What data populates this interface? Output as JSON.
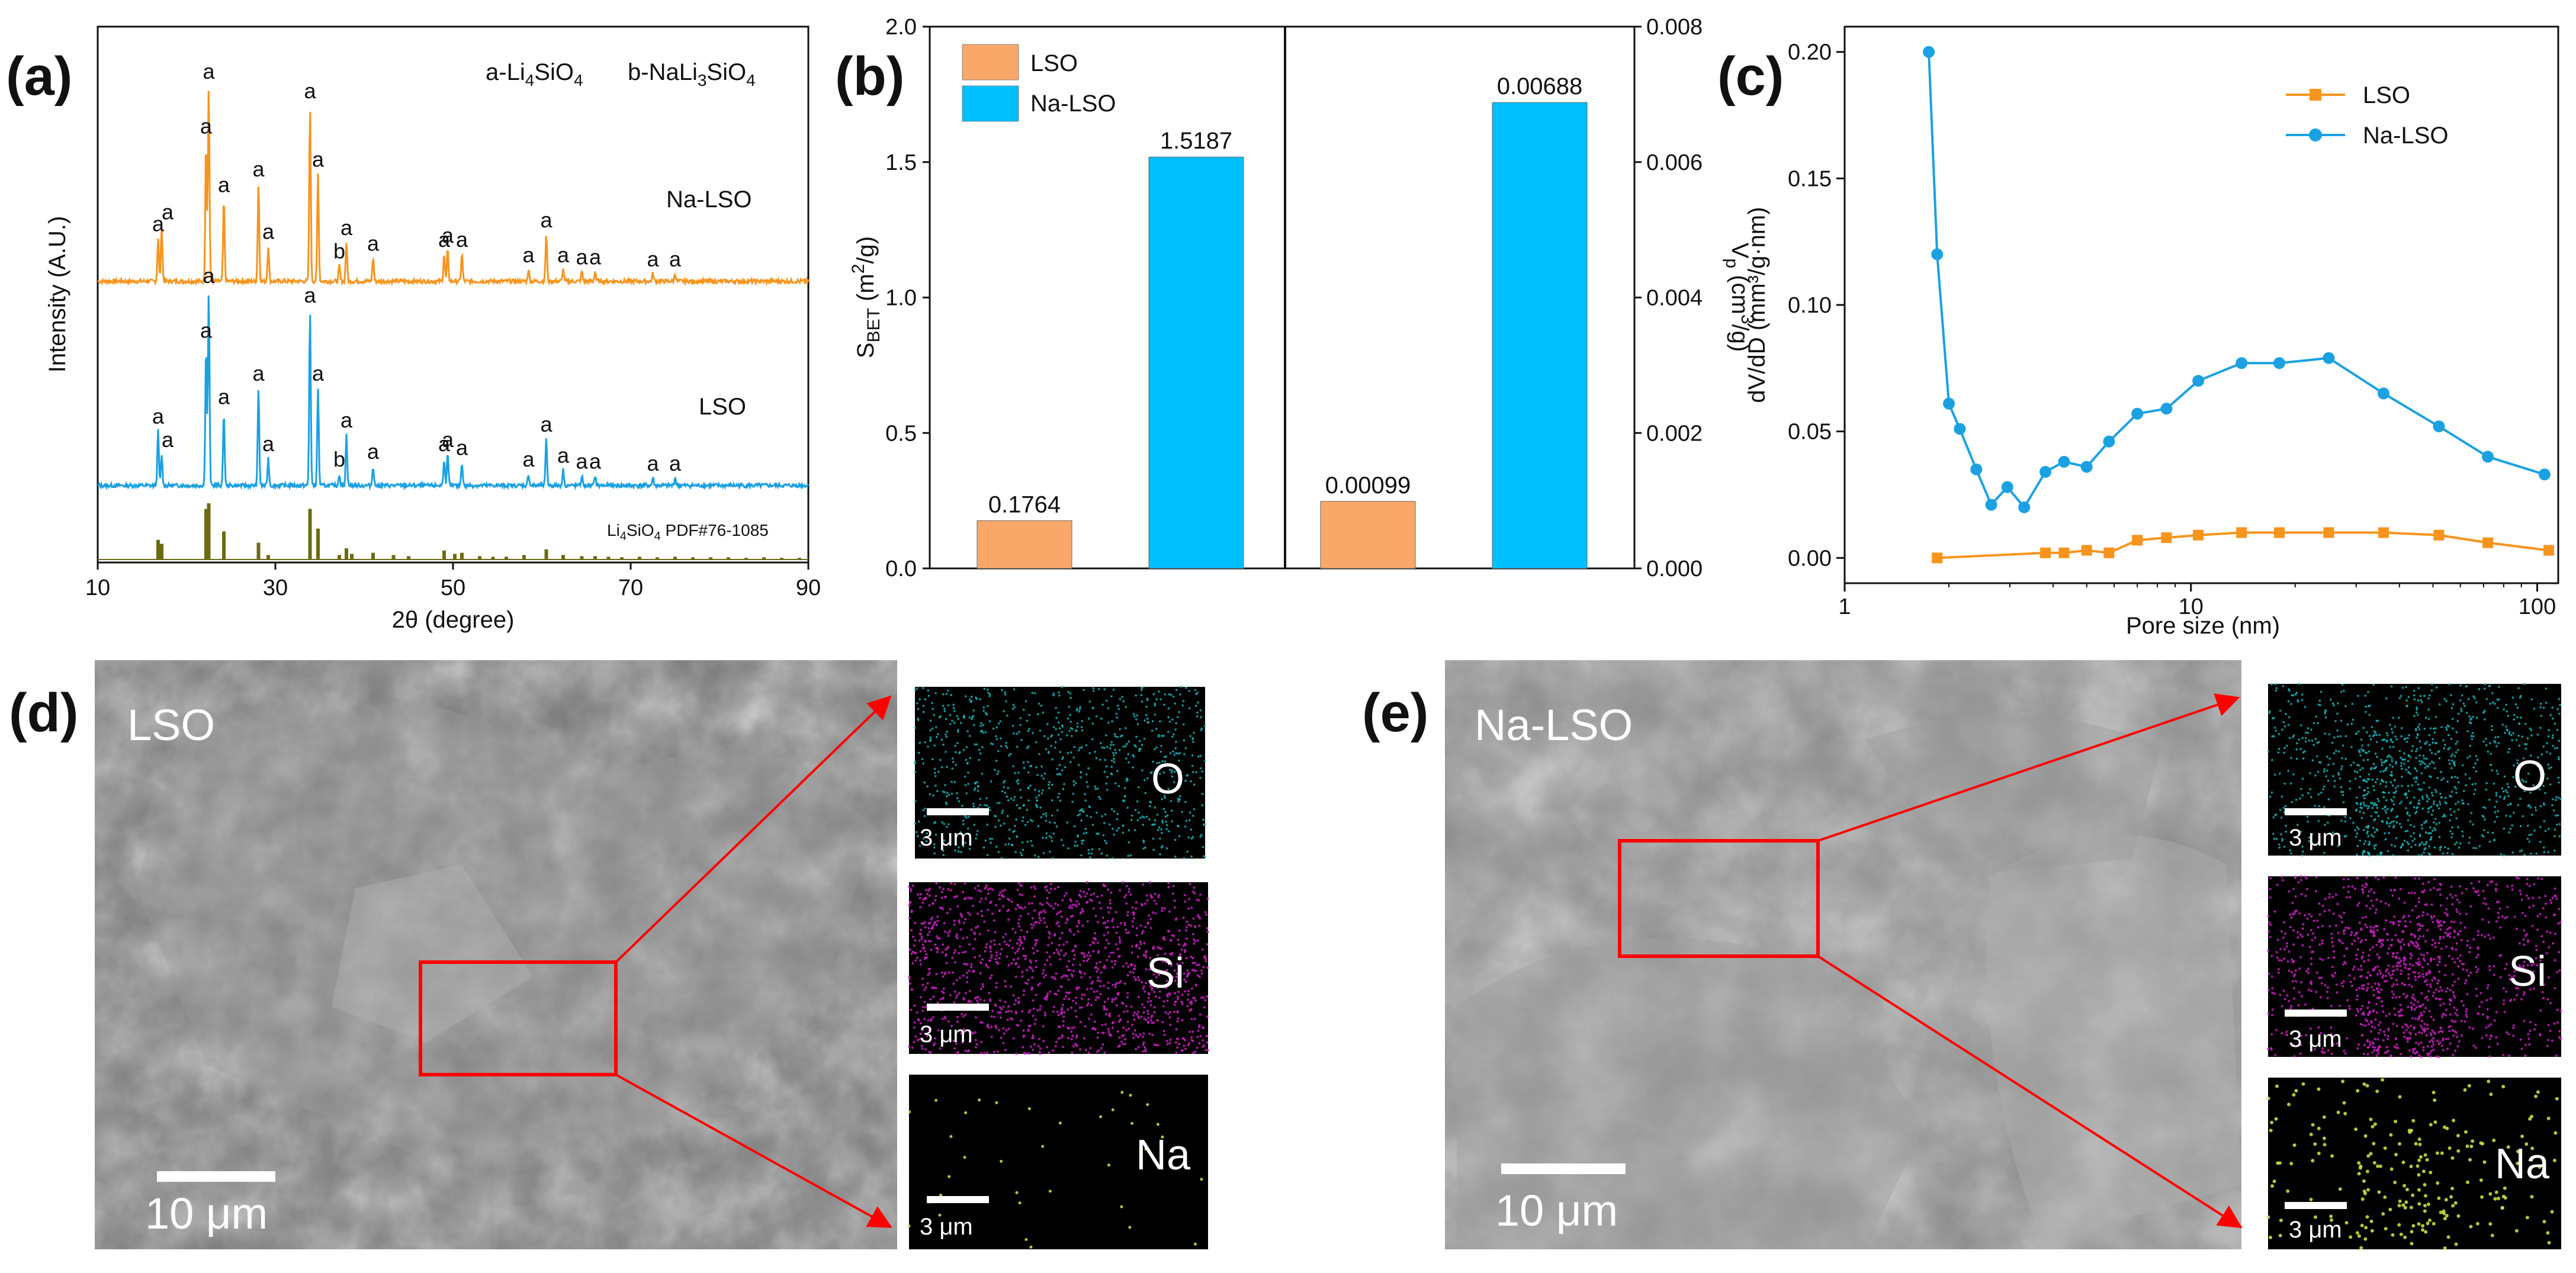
{
  "colors": {
    "lso": "#F7941D",
    "na_lso": "#1BA1E2",
    "lso_bar": "#F9A86A",
    "na_bar": "#00BFFF",
    "pdf": "#6B6B14",
    "arrow": "#FF0000",
    "map_o": "#19B5B5",
    "map_si": "#C81EBE",
    "map_na": "#D2E646"
  },
  "panels": {
    "a": {
      "label": "(a)"
    },
    "b": {
      "label": "(b)"
    },
    "c": {
      "label": "(c)"
    },
    "d": {
      "label": "(d)"
    },
    "e": {
      "label": "(e)"
    }
  },
  "xrd": {
    "legend_a": "a-Li",
    "legend_a_sub": "4",
    "legend_a_tail": "SiO",
    "legend_a_sub2": "4",
    "legend_b": "b-NaLi",
    "legend_b_sub": "3",
    "legend_b_tail": "SiO",
    "legend_b_sub2": "4",
    "label_na": "Na-LSO",
    "label_lso": "LSO",
    "pdf_prefix": "Li",
    "pdf_sub1": "4",
    "pdf_mid": "SiO",
    "pdf_sub2": "4",
    "pdf_suffix": "  PDF#76-1085",
    "peak_a": "a",
    "peak_b": "b"
  },
  "annotations_sem": {
    "lso_label": "LSO",
    "na_label": "Na-LSO",
    "scale_main": "10 μm",
    "scale_map": "3 μm",
    "el_o": "O",
    "el_si": "Si",
    "el_na": "Na"
  },
  "chart_data": [
    {
      "type": "line",
      "panel": "a",
      "title": "",
      "xlabel": "2θ (degree)",
      "ylabel": "Intensity (A.U.)",
      "xlim": [
        10,
        90
      ],
      "xticks": [
        10,
        30,
        50,
        70,
        90
      ],
      "tick_labels": [
        "10",
        "30",
        "50",
        "70",
        "90"
      ],
      "series": [
        {
          "name": "Na-LSO",
          "peaks": [
            [
              16.8,
              0.22
            ],
            [
              17.2,
              0.28
            ],
            [
              22.2,
              0.72
            ],
            [
              22.5,
              1.0
            ],
            [
              24.2,
              0.42
            ],
            [
              28.1,
              0.5
            ],
            [
              29.2,
              0.18
            ],
            [
              33.9,
              0.9
            ],
            [
              34.8,
              0.55
            ],
            [
              37.2,
              0.08
            ],
            [
              38.0,
              0.2
            ],
            [
              41.0,
              0.12
            ],
            [
              49.0,
              0.14
            ],
            [
              49.4,
              0.16
            ],
            [
              51.0,
              0.14
            ],
            [
              58.5,
              0.06
            ],
            [
              60.5,
              0.24
            ],
            [
              62.4,
              0.06
            ],
            [
              64.5,
              0.05
            ],
            [
              66.0,
              0.05
            ],
            [
              72.5,
              0.04
            ],
            [
              75.0,
              0.04
            ]
          ]
        },
        {
          "name": "LSO",
          "peaks": [
            [
              16.8,
              0.28
            ],
            [
              17.2,
              0.16
            ],
            [
              22.2,
              0.72
            ],
            [
              22.5,
              1.0
            ],
            [
              24.2,
              0.38
            ],
            [
              28.1,
              0.5
            ],
            [
              29.2,
              0.14
            ],
            [
              33.9,
              0.9
            ],
            [
              34.8,
              0.5
            ],
            [
              37.2,
              0.06
            ],
            [
              38.0,
              0.26
            ],
            [
              41.0,
              0.1
            ],
            [
              49.0,
              0.14
            ],
            [
              49.4,
              0.16
            ],
            [
              51.0,
              0.12
            ],
            [
              58.5,
              0.06
            ],
            [
              60.5,
              0.24
            ],
            [
              62.4,
              0.08
            ],
            [
              64.5,
              0.05
            ],
            [
              66.0,
              0.05
            ],
            [
              72.5,
              0.04
            ],
            [
              75.0,
              0.04
            ]
          ]
        },
        {
          "name": "Li4SiO4 PDF#76-1085",
          "sticks": [
            [
              16.8,
              0.35
            ],
            [
              17.2,
              0.28
            ],
            [
              22.2,
              0.9
            ],
            [
              22.5,
              1.0
            ],
            [
              24.2,
              0.5
            ],
            [
              28.1,
              0.3
            ],
            [
              29.2,
              0.08
            ],
            [
              33.9,
              0.9
            ],
            [
              34.8,
              0.55
            ],
            [
              37.2,
              0.08
            ],
            [
              38.0,
              0.2
            ],
            [
              38.6,
              0.1
            ],
            [
              41.0,
              0.12
            ],
            [
              43.3,
              0.08
            ],
            [
              45.0,
              0.06
            ],
            [
              49.0,
              0.16
            ],
            [
              50.2,
              0.1
            ],
            [
              51.0,
              0.12
            ],
            [
              53.0,
              0.06
            ],
            [
              54.5,
              0.05
            ],
            [
              56.0,
              0.05
            ],
            [
              58.0,
              0.08
            ],
            [
              60.5,
              0.18
            ],
            [
              62.4,
              0.08
            ],
            [
              64.5,
              0.06
            ],
            [
              66.0,
              0.06
            ],
            [
              67.5,
              0.05
            ],
            [
              69.0,
              0.04
            ],
            [
              71.0,
              0.05
            ],
            [
              73.0,
              0.04
            ],
            [
              75.0,
              0.05
            ],
            [
              77.0,
              0.04
            ],
            [
              79.0,
              0.04
            ],
            [
              81.0,
              0.04
            ],
            [
              83.0,
              0.03
            ],
            [
              85.0,
              0.04
            ],
            [
              87.0,
              0.03
            ],
            [
              89.0,
              0.03
            ]
          ]
        }
      ]
    },
    {
      "type": "bar",
      "panel": "b",
      "categories": [
        "S_BET",
        "V_p"
      ],
      "series": [
        {
          "name": "LSO",
          "values": [
            0.1764,
            0.00099
          ],
          "labels": [
            "0.1764",
            "0.00099"
          ]
        },
        {
          "name": "Na-LSO",
          "values": [
            1.5187,
            0.00688
          ],
          "labels": [
            "1.5187",
            "0.00688"
          ]
        }
      ],
      "ylabel_left": "S",
      "ylabel_left_sub": "BET",
      "ylabel_left_unit_a": " (m",
      "ylabel_left_sup": "2",
      "ylabel_left_unit_b": "/g)",
      "ylabel_right": "V",
      "ylabel_right_sub": "p",
      "ylabel_right_unit_a": " (cm",
      "ylabel_right_sup": "3",
      "ylabel_right_unit_b": "/g)",
      "ylim_left": [
        0,
        2.0
      ],
      "ylim_right": [
        0,
        0.008
      ],
      "left_ticks": [
        "0.0",
        "0.5",
        "1.0",
        "1.5",
        "2.0"
      ],
      "right_ticks": [
        "0.000",
        "0.002",
        "0.004",
        "0.006",
        "0.008"
      ],
      "legend": [
        "LSO",
        "Na-LSO"
      ]
    },
    {
      "type": "line",
      "panel": "c",
      "xlabel": "Pore size (nm)",
      "ylabel": "dV/dD (mm³/g·nm)",
      "xscale": "log",
      "xlim": [
        1,
        115
      ],
      "ylim": [
        -0.01,
        0.21
      ],
      "xticks": [
        "1",
        "10",
        "100"
      ],
      "yticks": [
        "0.00",
        "0.05",
        "0.10",
        "0.15",
        "0.20"
      ],
      "legend_position": "top-right",
      "series": [
        {
          "name": "LSO",
          "marker": "square",
          "x": [
            1.85,
            3.8,
            4.3,
            5.0,
            5.8,
            7.0,
            8.5,
            10.5,
            14,
            18,
            25,
            36,
            52,
            72,
            108
          ],
          "y": [
            0.0,
            0.002,
            0.002,
            0.003,
            0.002,
            0.007,
            0.008,
            0.009,
            0.01,
            0.01,
            0.01,
            0.01,
            0.009,
            0.006,
            0.003
          ]
        },
        {
          "name": "Na-LSO",
          "marker": "circle",
          "x": [
            1.75,
            1.85,
            2.0,
            2.15,
            2.4,
            2.65,
            2.95,
            3.3,
            3.8,
            4.3,
            5.0,
            5.8,
            7.0,
            8.5,
            10.5,
            14,
            18,
            25,
            36,
            52,
            72,
            105
          ],
          "y": [
            0.2,
            0.12,
            0.061,
            0.051,
            0.035,
            0.021,
            0.028,
            0.02,
            0.034,
            0.038,
            0.036,
            0.046,
            0.057,
            0.059,
            0.07,
            0.077,
            0.077,
            0.079,
            0.065,
            0.052,
            0.04,
            0.033
          ]
        }
      ]
    }
  ]
}
